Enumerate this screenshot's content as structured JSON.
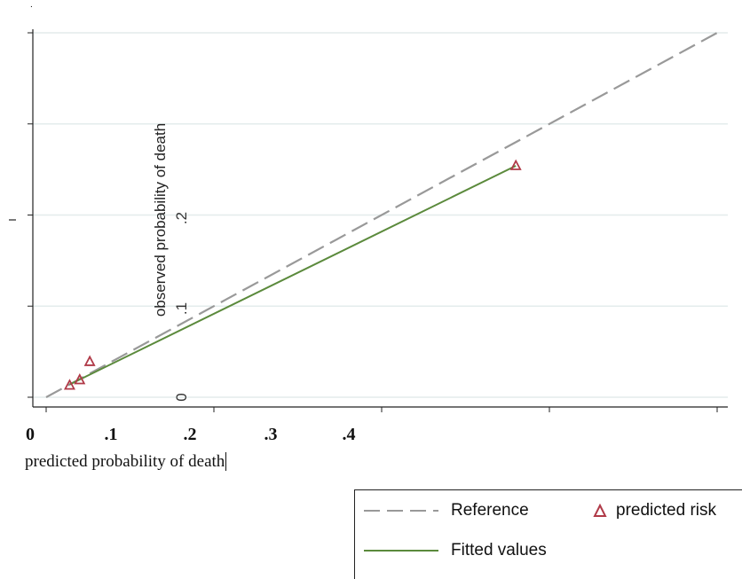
{
  "chart_data": {
    "type": "scatter",
    "xlabel": "predicted probability of death",
    "ylabel": "observed probability of death",
    "x_ticks": [
      "0",
      ".1",
      ".2",
      ".3",
      ".4"
    ],
    "y_ticks": [
      "0",
      ".1",
      ".2"
    ],
    "xlim": [
      0,
      0.4
    ],
    "ylim": [
      0,
      0.4
    ],
    "grid": true,
    "legend_position": "bottom-right",
    "series": [
      {
        "name": "Reference",
        "kind": "line-dashed",
        "color": "#999999",
        "points": [
          [
            0,
            0
          ],
          [
            0.4,
            0.4
          ]
        ]
      },
      {
        "name": "Fitted values",
        "kind": "line",
        "color": "#5b8a3c",
        "points": [
          [
            0.014,
            0.014
          ],
          [
            0.28,
            0.254
          ]
        ]
      },
      {
        "name": "predicted risk",
        "kind": "triangle",
        "color": "#b03a48",
        "points": [
          [
            0.014,
            0.013
          ],
          [
            0.02,
            0.019
          ],
          [
            0.026,
            0.039
          ],
          [
            0.28,
            0.254
          ]
        ]
      }
    ]
  }
}
